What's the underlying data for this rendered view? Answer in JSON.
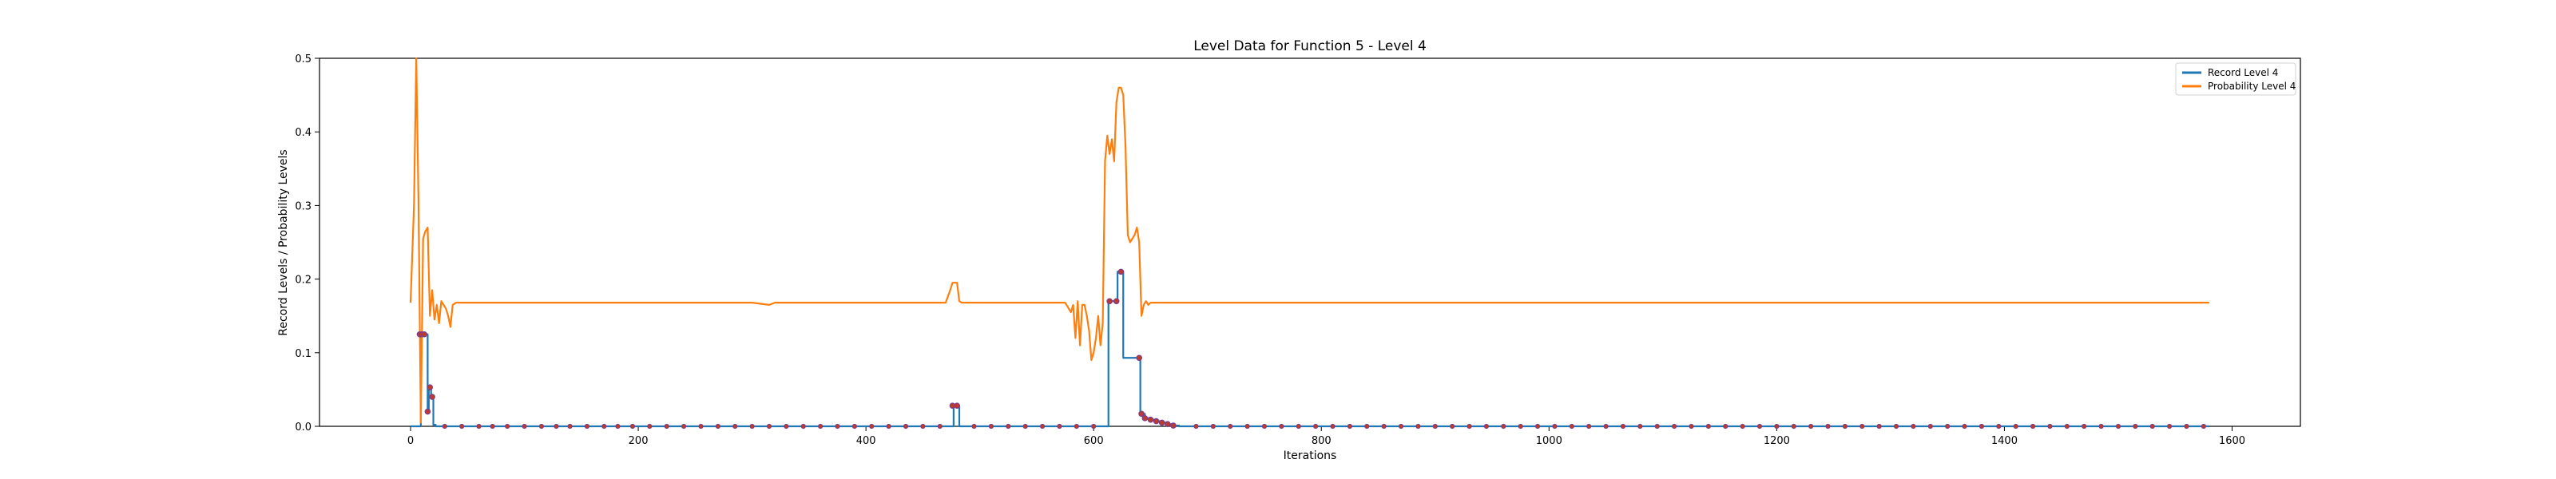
{
  "chart_data": {
    "type": "line",
    "title": "Level Data for Function 5 - Level 4",
    "xlabel": "Iterations",
    "ylabel": "Record Levels / Probability Levels",
    "xlim": [
      -80,
      1660
    ],
    "ylim": [
      0,
      0.5
    ],
    "xticks": [
      0,
      200,
      400,
      600,
      800,
      1000,
      1200,
      1400,
      1600
    ],
    "yticks": [
      0.0,
      0.1,
      0.2,
      0.3,
      0.4,
      0.5
    ],
    "legend_position": "top-right",
    "grid": false,
    "series": [
      {
        "name": "Record Level 4",
        "color": "#1f77b4",
        "step": true,
        "x": [
          0,
          8,
          9,
          15,
          16,
          18,
          20,
          22,
          476,
          477,
          480,
          482,
          612,
          613,
          620,
          621,
          624,
          626,
          640,
          641,
          645,
          650,
          655,
          660,
          665,
          670,
          675,
          1580
        ],
        "y": [
          0,
          0,
          0.125,
          0.02,
          0.053,
          0.04,
          0.002,
          0,
          0,
          0.028,
          0.028,
          0,
          0,
          0.17,
          0.17,
          0.21,
          0.21,
          0.093,
          0.093,
          0.017,
          0.011,
          0.009,
          0.007,
          0.005,
          0.003,
          0.001,
          0,
          0
        ]
      },
      {
        "name": "Probability Level 4",
        "color": "#ff7f0e",
        "step": false,
        "x": [
          0,
          3,
          5,
          7,
          9,
          11,
          13,
          15,
          17,
          19,
          21,
          23,
          25,
          27,
          29,
          31,
          33,
          35,
          37,
          40,
          300,
          315,
          320,
          330,
          470,
          474,
          476,
          478,
          480,
          482,
          484,
          486,
          560,
          575,
          580,
          582,
          584,
          586,
          588,
          590,
          592,
          594,
          596,
          598,
          600,
          602,
          604,
          606,
          608,
          610,
          612,
          614,
          616,
          618,
          620,
          622,
          624,
          626,
          628,
          630,
          632,
          634,
          636,
          638,
          640,
          642,
          644,
          646,
          648,
          650,
          652,
          660,
          1580
        ],
        "y": [
          0.168,
          0.3,
          0.5,
          0.3,
          0.005,
          0.255,
          0.265,
          0.27,
          0.15,
          0.185,
          0.145,
          0.165,
          0.14,
          0.17,
          0.165,
          0.16,
          0.15,
          0.135,
          0.165,
          0.168,
          0.168,
          0.165,
          0.168,
          0.168,
          0.168,
          0.185,
          0.195,
          0.195,
          0.195,
          0.17,
          0.168,
          0.168,
          0.168,
          0.168,
          0.155,
          0.165,
          0.12,
          0.17,
          0.11,
          0.165,
          0.165,
          0.15,
          0.13,
          0.09,
          0.1,
          0.12,
          0.15,
          0.11,
          0.14,
          0.36,
          0.395,
          0.37,
          0.39,
          0.36,
          0.44,
          0.46,
          0.46,
          0.45,
          0.38,
          0.26,
          0.25,
          0.255,
          0.26,
          0.27,
          0.25,
          0.15,
          0.165,
          0.17,
          0.165,
          0.168,
          0.168,
          0.168,
          0.168
        ]
      }
    ],
    "markers": {
      "color": "#c0392b",
      "outline_color": "#7b3f8a",
      "points": [
        [
          8,
          0.125
        ],
        [
          10,
          0.125
        ],
        [
          12,
          0.125
        ],
        [
          15,
          0.02
        ],
        [
          17,
          0.053
        ],
        [
          19,
          0.04
        ],
        [
          476,
          0.028
        ],
        [
          480,
          0.028
        ],
        [
          614,
          0.17
        ],
        [
          620,
          0.17
        ],
        [
          624,
          0.21
        ],
        [
          640,
          0.093
        ],
        [
          642,
          0.017
        ],
        [
          645,
          0.011
        ],
        [
          650,
          0.009
        ],
        [
          655,
          0.007
        ],
        [
          660,
          0.005
        ],
        [
          665,
          0.003
        ],
        [
          670,
          0.001
        ]
      ],
      "baseline_x": [
        30,
        45,
        60,
        72,
        85,
        100,
        115,
        128,
        140,
        155,
        170,
        182,
        195,
        210,
        225,
        240,
        255,
        270,
        285,
        300,
        315,
        330,
        345,
        360,
        375,
        390,
        405,
        420,
        435,
        450,
        465,
        495,
        510,
        525,
        540,
        555,
        570,
        585,
        600,
        690,
        705,
        720,
        735,
        750,
        765,
        780,
        795,
        810,
        825,
        840,
        855,
        870,
        885,
        900,
        915,
        930,
        945,
        960,
        975,
        990,
        1005,
        1020,
        1035,
        1050,
        1065,
        1080,
        1095,
        1110,
        1125,
        1140,
        1155,
        1170,
        1185,
        1200,
        1215,
        1230,
        1245,
        1260,
        1275,
        1290,
        1305,
        1320,
        1335,
        1350,
        1365,
        1380,
        1395,
        1410,
        1425,
        1440,
        1455,
        1470,
        1485,
        1500,
        1515,
        1530,
        1545,
        1560,
        1575
      ]
    }
  }
}
